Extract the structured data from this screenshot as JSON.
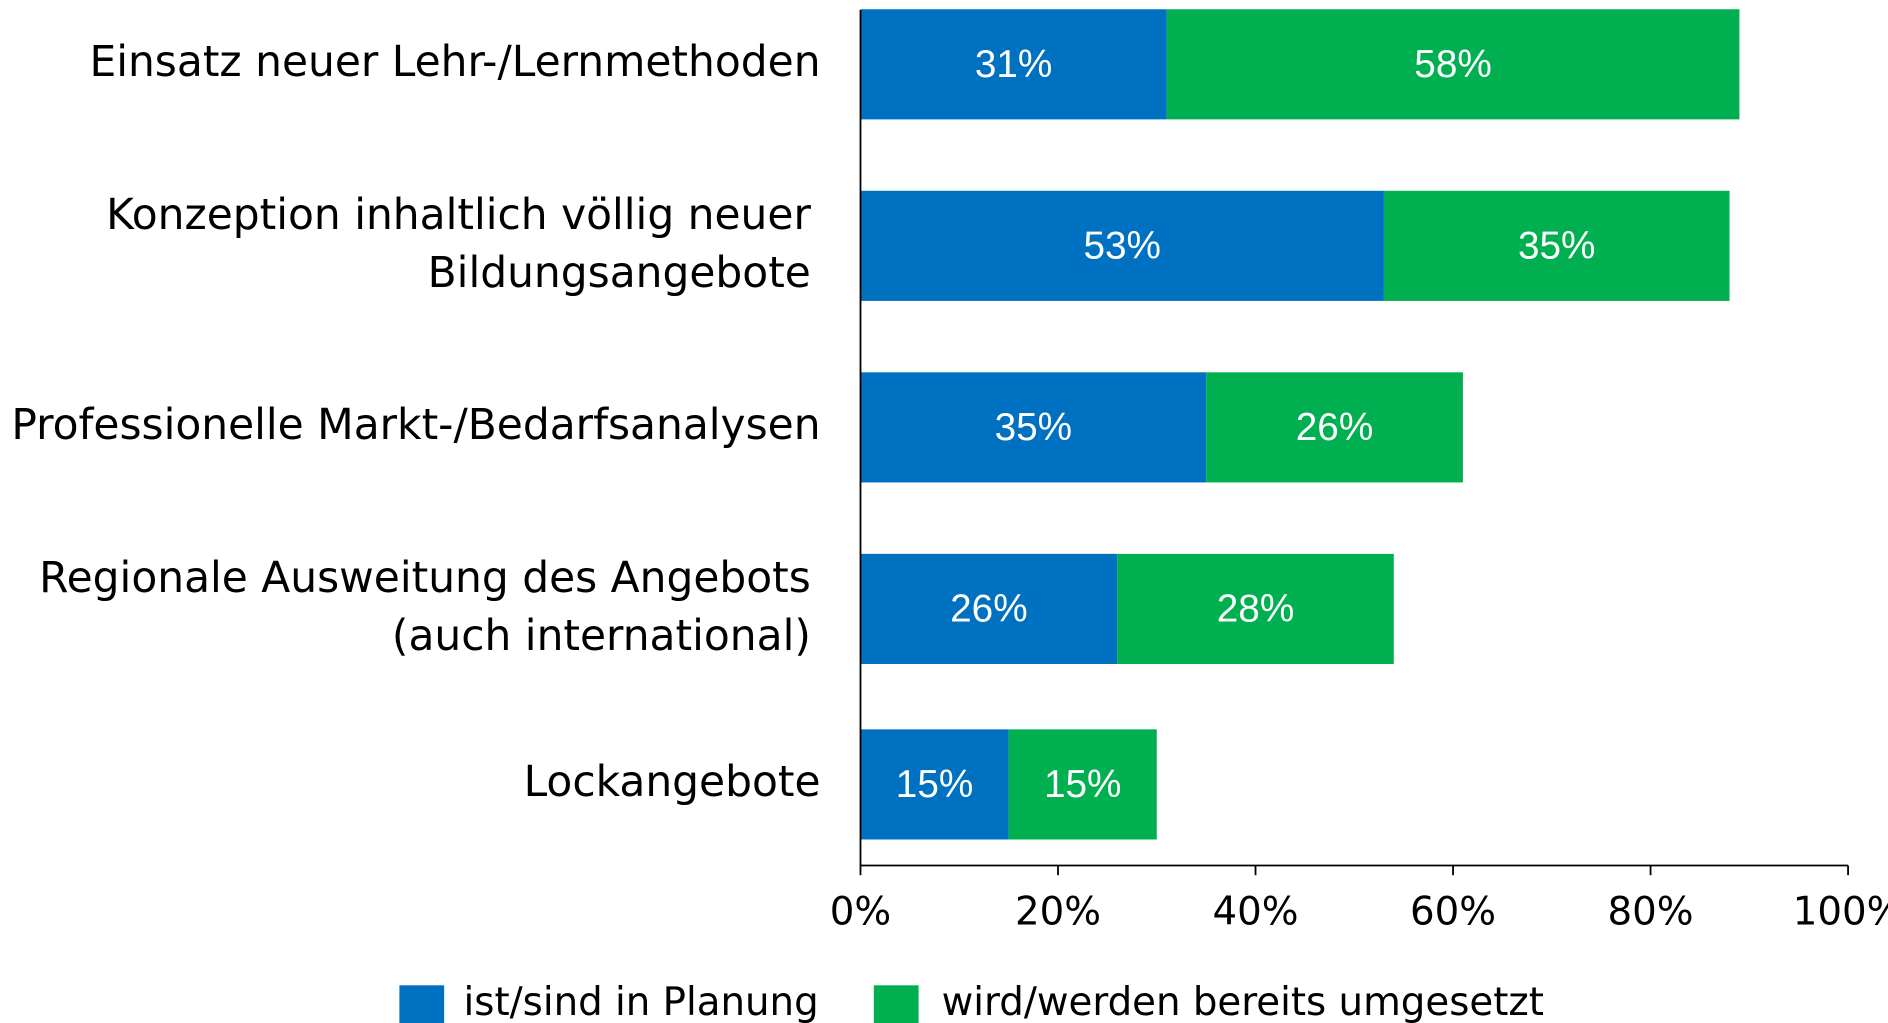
{
  "chart_data": {
    "type": "stacked_bar_horizontal",
    "categories": [
      "Einsatz neuer Lehr-/Lernmethoden",
      "Konzeption inhaltlich völlig neuer\nBildungsangebote",
      "Professionelle Markt-/Bedarfsanalysen",
      "Regionale Ausweitung des Angebots\n(auch international)",
      "Lockangebote"
    ],
    "series": [
      {
        "name": "ist/sind in Planung",
        "color": "#0070c0",
        "values": [
          31,
          53,
          35,
          26,
          15
        ],
        "value_labels": [
          "31%",
          "53%",
          "35%",
          "26%",
          "15%"
        ]
      },
      {
        "name": "wird/werden bereits umgesetzt",
        "color": "#00b050",
        "values": [
          58,
          35,
          26,
          28,
          15
        ],
        "value_labels": [
          "58%",
          "35%",
          "26%",
          "28%",
          "15%"
        ]
      }
    ],
    "xlim": [
      0,
      100
    ],
    "xticks": [
      {
        "value": 0,
        "label": "0%"
      },
      {
        "value": 20,
        "label": "20%"
      },
      {
        "value": 40,
        "label": "40%"
      },
      {
        "value": 60,
        "label": "60%"
      },
      {
        "value": 80,
        "label": "80%"
      },
      {
        "value": 100,
        "label": "100%"
      }
    ],
    "legend": "bottom"
  }
}
